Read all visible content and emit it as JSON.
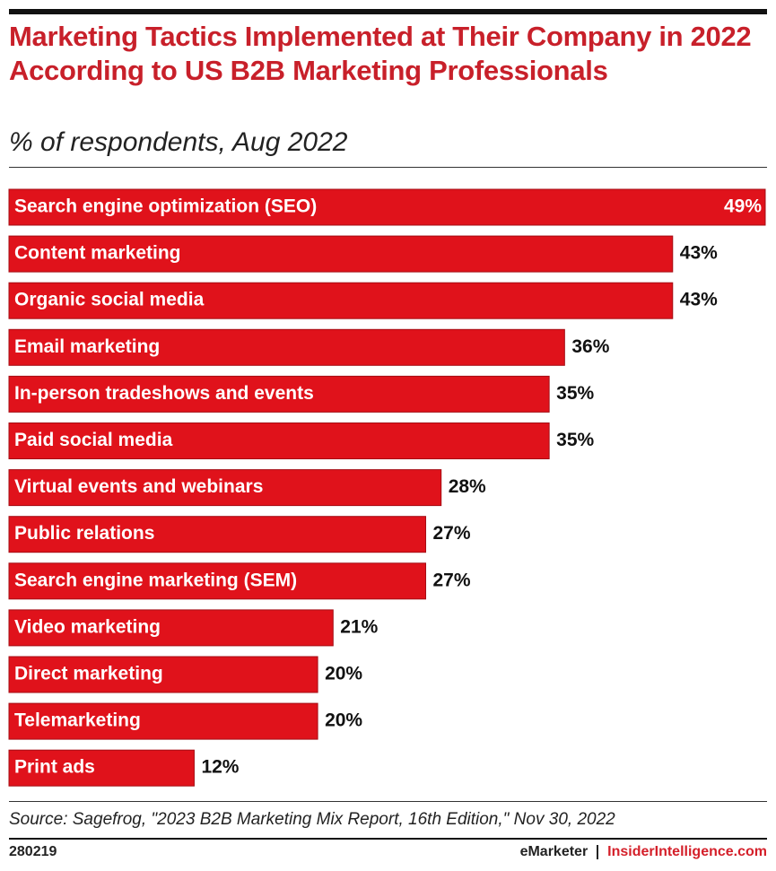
{
  "chart_data": {
    "type": "bar",
    "orientation": "horizontal",
    "title": "Marketing Tactics Implemented at Their Company in 2022 According to US B2B Marketing Professionals",
    "subtitle": "% of respondents, Aug 2022",
    "categories": [
      "Search engine optimization (SEO)",
      "Content marketing",
      "Organic social media",
      "Email marketing",
      "In-person tradeshows and events",
      "Paid social media",
      "Virtual events and webinars",
      "Public relations",
      "Search engine marketing (SEM)",
      "Video marketing",
      "Direct marketing",
      "Telemarketing",
      "Print ads"
    ],
    "values": [
      49,
      43,
      43,
      36,
      35,
      35,
      28,
      27,
      27,
      21,
      20,
      20,
      12
    ],
    "value_labels": [
      "49%",
      "43%",
      "43%",
      "36%",
      "35%",
      "35%",
      "28%",
      "27%",
      "27%",
      "21%",
      "20%",
      "20%",
      "12%"
    ],
    "color": "#e0121b",
    "source": "Source: Sagefrog, \"2023 B2B Marketing Mix Report, 16th Edition,\" Nov 30, 2022",
    "chart_id": "280219",
    "brand": "eMarketer",
    "website": "InsiderIntelligence.com"
  }
}
